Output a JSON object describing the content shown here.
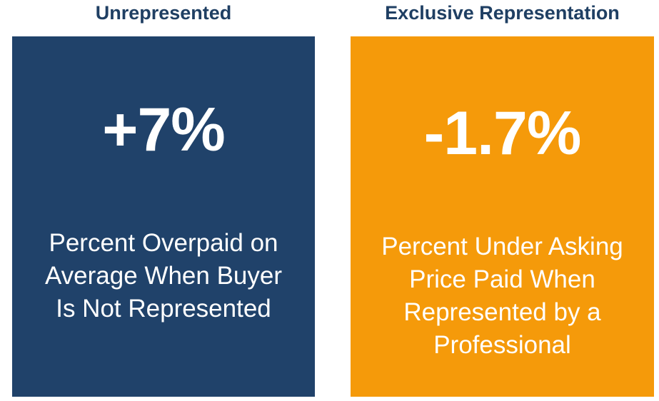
{
  "colors": {
    "navy": "#20426a",
    "orange": "#f59a0a",
    "heading_text": "#1f3f63",
    "card_text": "#ffffff"
  },
  "panels": [
    {
      "heading": "Unrepresented",
      "value": "+7%",
      "description": "Percent Overpaid on\nAverage When Buyer\nIs Not Represented"
    },
    {
      "heading": "Exclusive Representation",
      "value": "-1.7%",
      "description": "Percent Under Asking\nPrice Paid When\nRepresented by a\nProfessional"
    }
  ]
}
